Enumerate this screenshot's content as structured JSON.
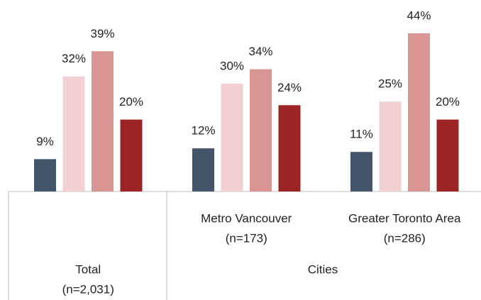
{
  "chart_data": {
    "type": "bar",
    "categories": [
      "Total",
      "Metro Vancouver",
      "Greater Toronto Area"
    ],
    "category_notes": [
      "(n=2,031)",
      "(n=173)",
      "(n=286)"
    ],
    "group_label": "Cities",
    "series": [
      {
        "color": "#44546a",
        "values": [
          9,
          12,
          11
        ],
        "value_labels": [
          "9%",
          "12%",
          "11%"
        ]
      },
      {
        "color": "#f2d0d2",
        "values": [
          32,
          30,
          25
        ],
        "value_labels": [
          "32%",
          "30%",
          "25%"
        ]
      },
      {
        "color": "#d99594",
        "values": [
          39,
          34,
          44
        ],
        "value_labels": [
          "39%",
          "34%",
          "44%"
        ]
      },
      {
        "color": "#9b2524",
        "values": [
          20,
          24,
          20
        ],
        "value_labels": [
          "20%",
          "24%",
          "20%"
        ]
      }
    ]
  }
}
